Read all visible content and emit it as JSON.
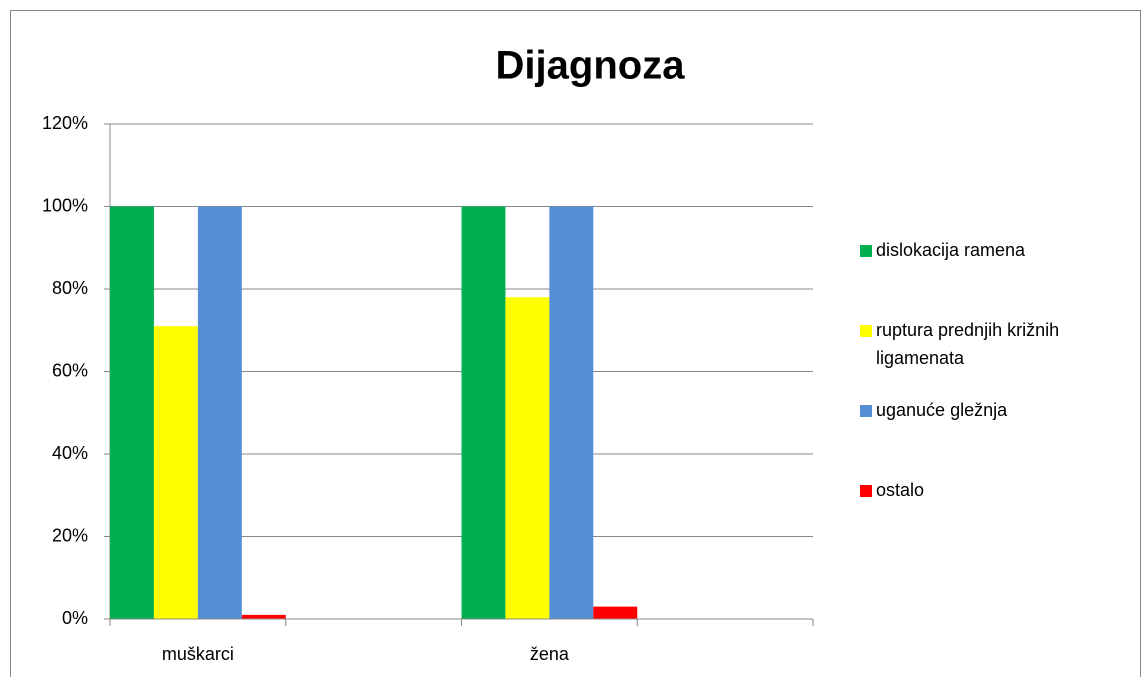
{
  "chart_data": {
    "type": "bar",
    "title": "Dijagnoza",
    "categories": [
      "muškarci",
      null,
      "žena",
      null
    ],
    "series": [
      {
        "name": "dislokacija ramena",
        "color": "#00b050",
        "values": [
          100,
          null,
          100,
          null
        ]
      },
      {
        "name": "ruptura prednjih križnih ligamenata",
        "color": "#ffff00",
        "values": [
          71,
          null,
          78,
          null
        ]
      },
      {
        "name": "uganuće gležnja",
        "color": "#558ed5",
        "values": [
          100,
          null,
          100,
          null
        ]
      },
      {
        "name": "ostalo",
        "color": "#ff0000",
        "values": [
          1,
          null,
          3,
          null
        ]
      }
    ],
    "ylim": [
      0,
      120
    ],
    "yticks": [
      {
        "value": 0,
        "label": "0%"
      },
      {
        "value": 20,
        "label": "20%"
      },
      {
        "value": 40,
        "label": "40%"
      },
      {
        "value": 60,
        "label": "60%"
      },
      {
        "value": 80,
        "label": "80%"
      },
      {
        "value": 100,
        "label": "100%"
      },
      {
        "value": 120,
        "label": "120%"
      }
    ],
    "grid": true,
    "legend": "right"
  }
}
